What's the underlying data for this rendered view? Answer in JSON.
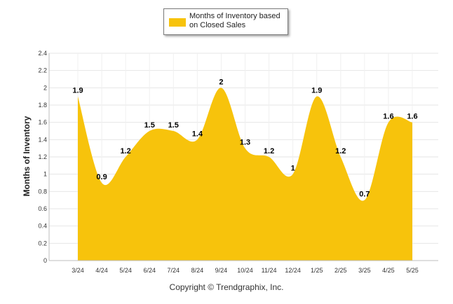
{
  "legend": {
    "label": "Months of Inventory based\non Closed Sales"
  },
  "footer": {
    "copyright": "Copyright © Trendgraphix, Inc."
  },
  "colors": {
    "fill": "#f7c30c",
    "grid": "#e6e6e6",
    "axis": "#bdbdbd"
  },
  "chart_data": {
    "type": "area",
    "title": "",
    "xlabel": "",
    "ylabel": "Months of Inventory",
    "categories": [
      "3/24",
      "4/24",
      "5/24",
      "6/24",
      "7/24",
      "8/24",
      "9/24",
      "10/24",
      "11/24",
      "12/24",
      "1/25",
      "2/25",
      "3/25",
      "4/25",
      "5/25"
    ],
    "series": [
      {
        "name": "Months of Inventory based on Closed Sales",
        "values": [
          1.9,
          0.9,
          1.2,
          1.5,
          1.5,
          1.4,
          2,
          1.3,
          1.2,
          1,
          1.9,
          1.2,
          0.7,
          1.6,
          1.6
        ]
      }
    ],
    "data_labels": [
      "1.9",
      "0.9",
      "1.2",
      "1.5",
      "1.5",
      "1.4",
      "2",
      "1.3",
      "1.2",
      "1",
      "1.9",
      "1.2",
      "0.7",
      "1.6",
      "1.6"
    ],
    "yticks": [
      "0",
      "0.2",
      "0.4",
      "0.6",
      "0.8",
      "1",
      "1.2",
      "1.4",
      "1.6",
      "1.8",
      "2",
      "2.2",
      "2.4"
    ],
    "ylim": [
      0,
      2.4
    ],
    "grid": true,
    "legend_position": "top-center",
    "smooth": true
  }
}
